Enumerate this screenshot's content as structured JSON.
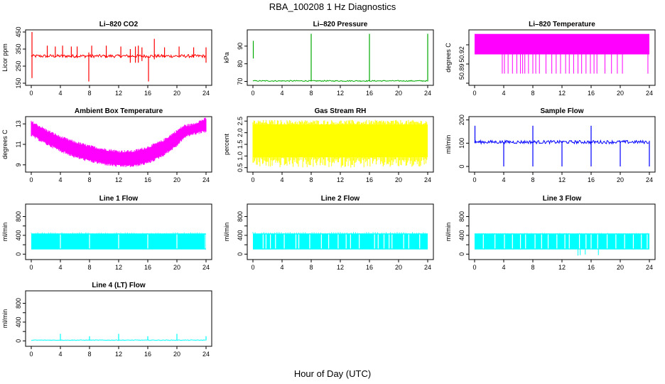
{
  "page": {
    "title": "RBA_100208  1 Hz Diagnostics",
    "xlabel": "Hour of Day (UTC)"
  },
  "colors": {
    "co2": "#ff0000",
    "pressure": "#00aa00",
    "licor_temp": "#ff00ff",
    "box_temp": "#ff00ff",
    "rh": "#ffff00",
    "sample_flow": "#0000ff",
    "line_flow": "#00ffff"
  },
  "chart_data": [
    {
      "type": "line",
      "title": "Li–820 CO2",
      "ylabel": "Licor ppm",
      "xlim": [
        0,
        24
      ],
      "ylim": [
        150,
        450
      ],
      "xticks": [
        0,
        4,
        8,
        12,
        16,
        20,
        24
      ],
      "yticks": [
        150,
        250,
        350,
        450
      ],
      "ytick_labels": [
        "150",
        "250",
        "350",
        "450"
      ],
      "series": [
        {
          "color_key": "co2",
          "baseline": 310,
          "band": [
            300,
            318
          ],
          "spikes": [
            [
              0.1,
              180,
              450
            ],
            [
              2.2,
              300,
              370
            ],
            [
              3.3,
              300,
              365
            ],
            [
              4.3,
              300,
              370
            ],
            [
              5.5,
              300,
              365
            ],
            [
              6.3,
              300,
              365
            ],
            [
              7.9,
              160,
              330
            ],
            [
              8.3,
              300,
              370
            ],
            [
              10.3,
              300,
              370
            ],
            [
              12.3,
              300,
              365
            ],
            [
              13.6,
              270,
              350
            ],
            [
              14.3,
              270,
              365
            ],
            [
              14.7,
              270,
              370
            ],
            [
              15.2,
              280,
              360
            ],
            [
              16.1,
              160,
              310
            ],
            [
              16.9,
              290,
              410
            ],
            [
              18.3,
              300,
              360
            ],
            [
              20.3,
              300,
              365
            ],
            [
              22.3,
              300,
              360
            ],
            [
              24,
              270,
              360
            ]
          ]
        }
      ]
    },
    {
      "type": "line",
      "title": "Li–820 Pressure",
      "ylabel": "kPa",
      "xlim": [
        0,
        24
      ],
      "ylim": [
        69,
        98
      ],
      "xticks": [
        0,
        4,
        8,
        12,
        16,
        20,
        24
      ],
      "yticks": [
        70,
        80,
        90
      ],
      "ytick_labels": [
        "70",
        "80",
        "90"
      ],
      "series": [
        {
          "color_key": "pressure",
          "baseline": 70.3,
          "band": [
            70.0,
            70.6
          ],
          "spikes": [
            [
              0.05,
              83,
              93
            ],
            [
              8.0,
              70,
              97
            ],
            [
              16.0,
              70,
              97
            ],
            [
              24.0,
              70,
              97
            ]
          ]
        }
      ]
    },
    {
      "type": "area",
      "title": "Li–820 Temperature",
      "ylabel": "degrees C",
      "xlim": [
        0,
        24
      ],
      "ylim": [
        50.86,
        50.94
      ],
      "xticks": [
        0,
        4,
        8,
        12,
        16,
        20,
        24
      ],
      "yticks": [
        50.86,
        50.89,
        50.92
      ],
      "ytick_labels": [
        "50.89",
        "50.92"
      ],
      "ytick_values": [
        50.878,
        50.905,
        50.927
      ],
      "series": [
        {
          "color_key": "licor_temp",
          "band_top": 50.937,
          "band_bottom": 50.905,
          "floor": 50.875,
          "drops": [
            3.8,
            4.1,
            4.6,
            5.2,
            5.8,
            6.3,
            6.6,
            6.9,
            7.4,
            8.0,
            8.4,
            8.9,
            9.8,
            10.6,
            11.2,
            11.8,
            12.5,
            13.0,
            13.6,
            14.2,
            14.7,
            15.3,
            15.9,
            16.4,
            16.8,
            17.9,
            18.8,
            19.6,
            20.3,
            23.8
          ]
        }
      ]
    },
    {
      "type": "area",
      "title": "Ambient Box Temperature",
      "ylabel": "degrees C",
      "xlim": [
        0,
        24
      ],
      "ylim": [
        8.5,
        13.5
      ],
      "xticks": [
        0,
        4,
        8,
        12,
        16,
        20,
        24
      ],
      "yticks": [
        9,
        11,
        13
      ],
      "ytick_labels": [
        "9",
        "11",
        "13"
      ],
      "series": [
        {
          "color_key": "box_temp",
          "hours": [
            0,
            2,
            4,
            6,
            8,
            10,
            12,
            14,
            16,
            18,
            20,
            21,
            22,
            24
          ],
          "upper": [
            13.1,
            12.3,
            11.6,
            11.1,
            10.7,
            10.4,
            10.2,
            10.2,
            10.6,
            11.2,
            12.2,
            12.7,
            12.8,
            13.4
          ],
          "lower": [
            12.0,
            11.2,
            10.5,
            9.9,
            9.5,
            9.2,
            9.0,
            9.0,
            9.3,
            10.0,
            11.0,
            11.8,
            12.1,
            12.4
          ]
        }
      ]
    },
    {
      "type": "area",
      "title": "Gas Stream RH",
      "ylabel": "percent",
      "xlim": [
        0,
        24
      ],
      "ylim": [
        0.4,
        2.6
      ],
      "xticks": [
        0,
        4,
        8,
        12,
        16,
        20,
        24
      ],
      "yticks": [
        0.5,
        1.0,
        1.5,
        2.0,
        2.5
      ],
      "ytick_labels": [
        "0.5",
        "1.0",
        "1.5",
        "2.0",
        "2.5"
      ],
      "series": [
        {
          "color_key": "rh",
          "upper": 2.35,
          "lower": 0.95,
          "max": 2.55,
          "min": 0.5
        }
      ]
    },
    {
      "type": "line",
      "title": "Sample Flow",
      "ylabel": "ml/min",
      "xlim": [
        0,
        24
      ],
      "ylim": [
        -15,
        205
      ],
      "xticks": [
        0,
        4,
        8,
        12,
        16,
        20,
        24
      ],
      "yticks": [
        0,
        100,
        200
      ],
      "ytick_labels": [
        "0",
        "100",
        "200"
      ],
      "series": [
        {
          "color_key": "sample_flow",
          "baseline": 105,
          "band": [
            98,
            112
          ],
          "spikes": [
            [
              0.05,
              100,
              175
            ],
            [
              4.0,
              0,
              105
            ],
            [
              8.0,
              0,
              175
            ],
            [
              12.0,
              0,
              110
            ],
            [
              16.0,
              0,
              175
            ],
            [
              20.0,
              0,
              105
            ],
            [
              24.0,
              0,
              110
            ]
          ]
        }
      ]
    },
    {
      "type": "area",
      "title": "Line 1 Flow",
      "ylabel": "ml/min",
      "xlim": [
        0,
        24
      ],
      "ylim": [
        -70,
        1020
      ],
      "xticks": [
        0,
        4,
        8,
        12,
        16,
        20,
        24
      ],
      "yticks": [
        0,
        200,
        400,
        600,
        800
      ],
      "ytick_labels": [
        "0",
        "400",
        "800"
      ],
      "ytick_label_values": [
        0,
        400,
        800
      ],
      "series": [
        {
          "color_key": "line_flow",
          "upper": 440,
          "lower": 100,
          "gaps": [
            4.0,
            8.0,
            12.0,
            16.0,
            20.0,
            23.9
          ],
          "dips": [],
          "max": 460
        }
      ]
    },
    {
      "type": "area",
      "title": "Line 2 Flow",
      "ylabel": "ml/min",
      "xlim": [
        0,
        24
      ],
      "ylim": [
        -70,
        1020
      ],
      "xticks": [
        0,
        4,
        8,
        12,
        16,
        20,
        24
      ],
      "yticks": [
        0,
        200,
        400,
        600,
        800
      ],
      "ytick_labels": [
        "0",
        "400",
        "800"
      ],
      "ytick_label_values": [
        0,
        400,
        800
      ],
      "series": [
        {
          "color_key": "line_flow",
          "upper": 440,
          "lower": 100,
          "gaps": [
            1.4,
            1.8,
            2.4,
            3.1,
            4.3,
            5.9,
            6.3,
            7.8,
            9.4,
            10.4,
            11.7,
            12.8,
            13.4,
            14.6,
            16.7,
            17.2,
            18.0,
            18.7,
            19.1,
            20.7,
            21.4,
            22.9
          ],
          "dips": [],
          "max": 470
        }
      ]
    },
    {
      "type": "area",
      "title": "Line 3 Flow",
      "ylabel": "ml/min",
      "xlim": [
        0,
        24
      ],
      "ylim": [
        -70,
        1020
      ],
      "xticks": [
        0,
        4,
        8,
        12,
        16,
        20,
        24
      ],
      "yticks": [
        0,
        200,
        400,
        600,
        800
      ],
      "ytick_labels": [
        "0",
        "400",
        "800"
      ],
      "ytick_label_values": [
        0,
        400,
        800
      ],
      "series": [
        {
          "color_key": "line_flow",
          "upper": 440,
          "lower": 100,
          "gaps": [
            1.2,
            2.8,
            4.1,
            5.2,
            6.3,
            7.0,
            8.3,
            9.2,
            10.1,
            11.3,
            12.4,
            13.0,
            14.4,
            15.3,
            16.0,
            16.9,
            18.2,
            19.4,
            20.6,
            21.8,
            22.9,
            23.7
          ],
          "dips": [
            [
              14.2,
              -30
            ],
            [
              14.5,
              -20
            ],
            [
              15.2,
              -10
            ],
            [
              17.0,
              -20
            ]
          ],
          "max": 450
        }
      ]
    },
    {
      "type": "line",
      "title": "Line 4 (LT) Flow",
      "ylabel": "ml/min",
      "xlim": [
        0,
        24
      ],
      "ylim": [
        -70,
        1020
      ],
      "xticks": [
        0,
        4,
        8,
        12,
        16,
        20,
        24
      ],
      "yticks": [
        0,
        200,
        400,
        600,
        800
      ],
      "ytick_labels": [
        "0",
        "400",
        "800"
      ],
      "ytick_label_values": [
        0,
        400,
        800
      ],
      "series": [
        {
          "color_key": "line_flow",
          "baseline": 15,
          "band": [
            10,
            22
          ],
          "spikes": [
            [
              4.0,
              10,
              150
            ],
            [
              8.0,
              10,
              100
            ],
            [
              12.0,
              10,
              150
            ],
            [
              16.0,
              10,
              100
            ],
            [
              20.0,
              10,
              150
            ],
            [
              24.0,
              10,
              100
            ]
          ]
        }
      ]
    }
  ]
}
